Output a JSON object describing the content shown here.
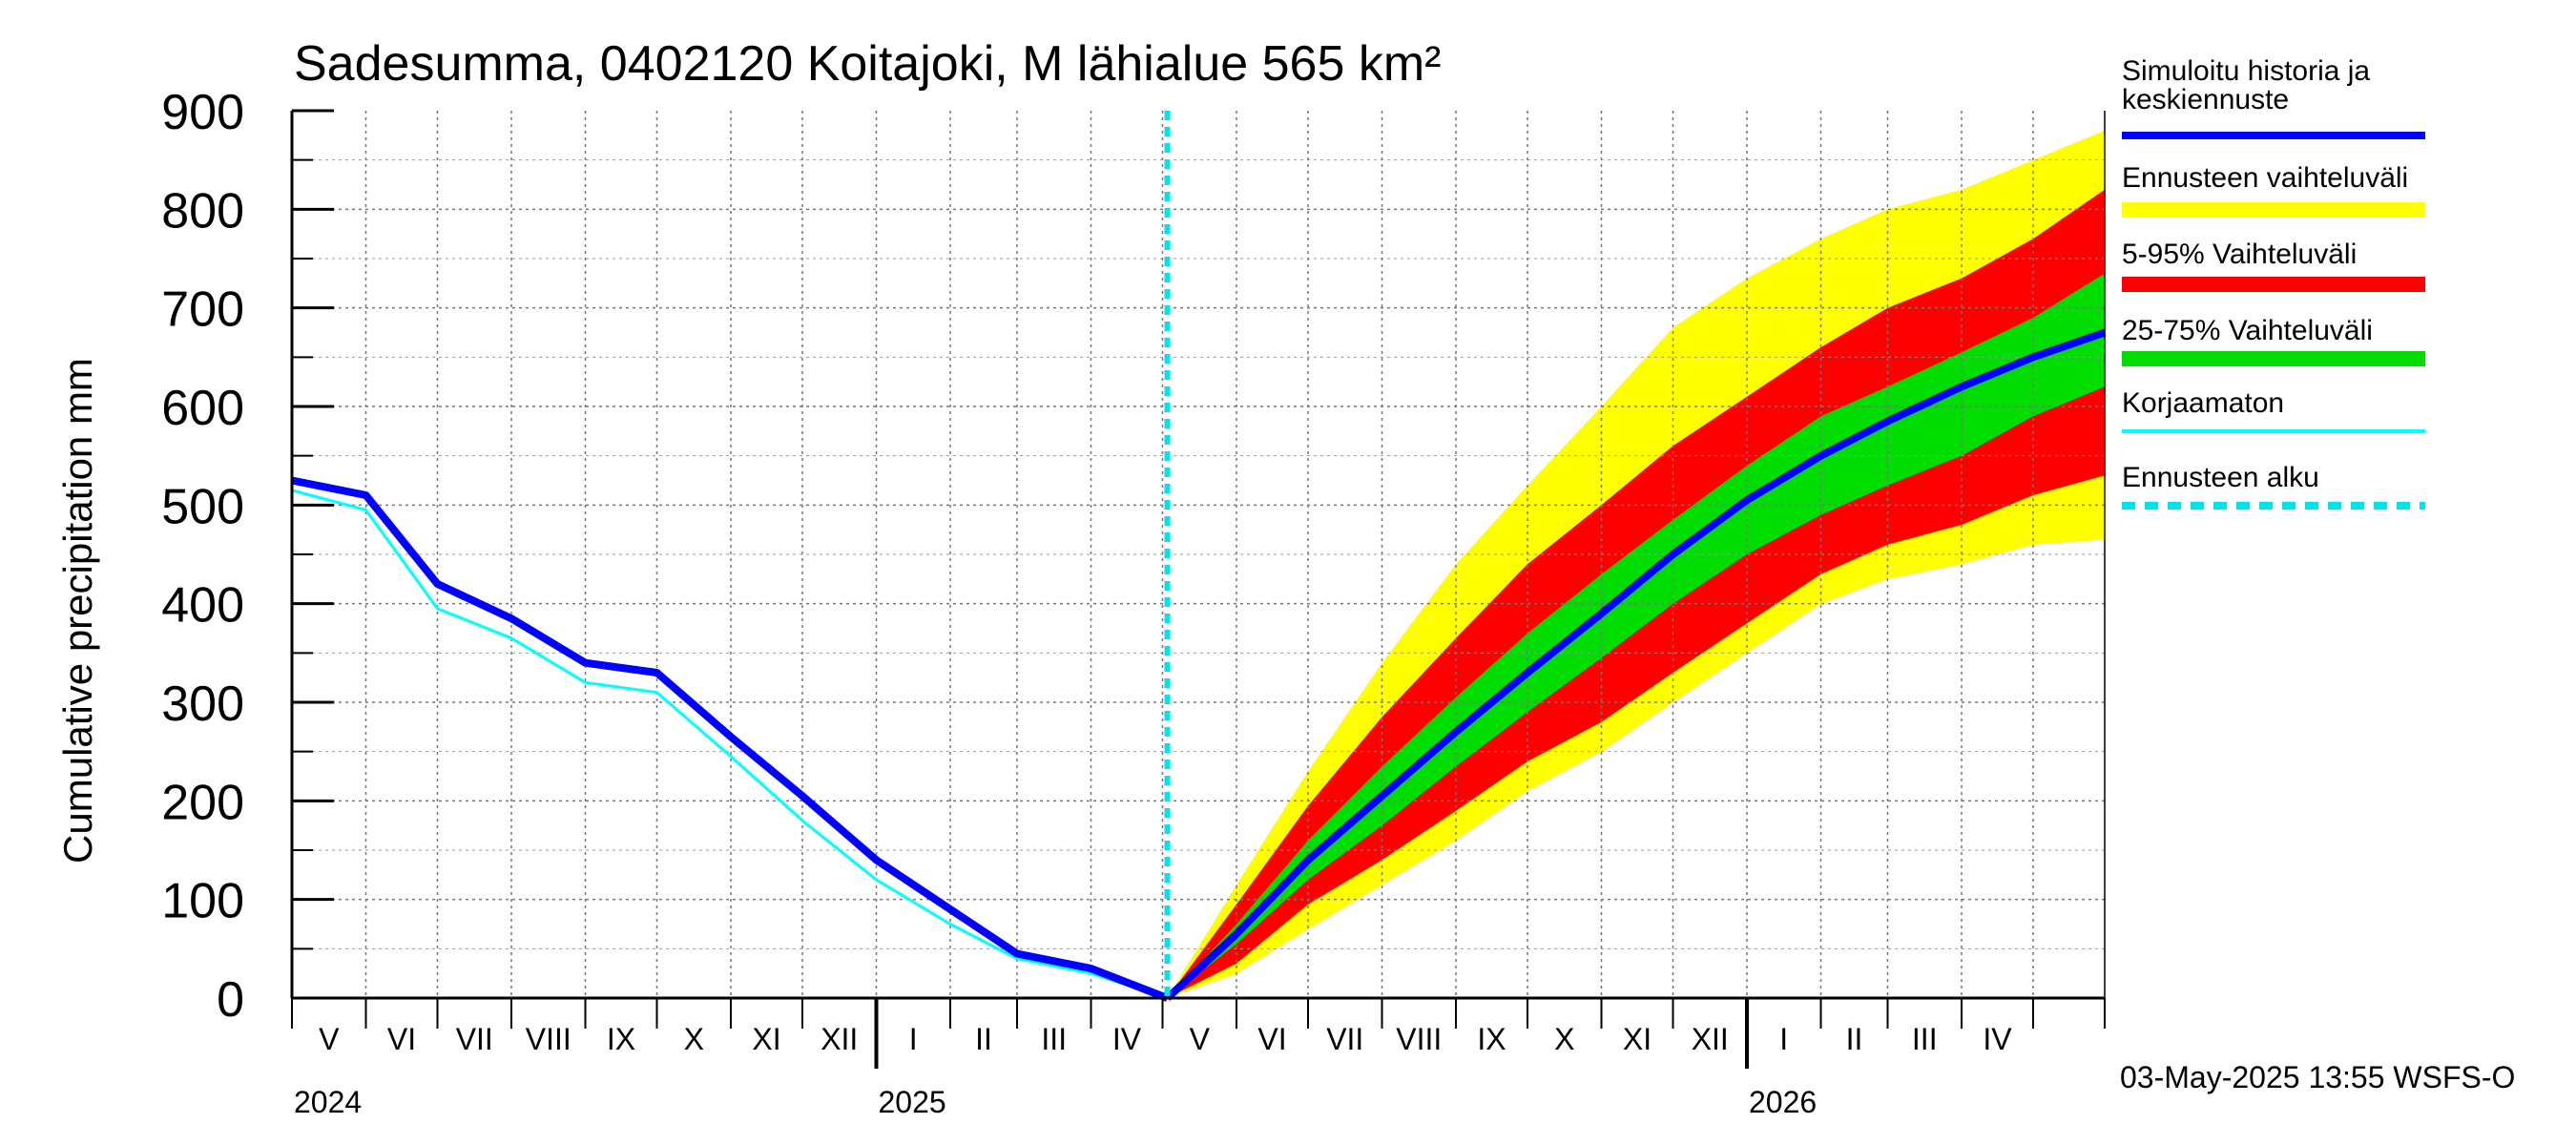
{
  "chart_data": {
    "type": "area",
    "title": "Sadesumma, 0402120 Koitajoki, M lähialue 565 km²",
    "ylabel": "Cumulative precipitation   mm",
    "ylim": [
      0,
      900
    ],
    "yticks": [
      0,
      100,
      200,
      300,
      400,
      500,
      600,
      700,
      800,
      900
    ],
    "x_start": "2024-05-01",
    "x_end": "2026-05-31",
    "forecast_start": "2025-05-03",
    "months": [
      "V",
      "VI",
      "VII",
      "VIII",
      "IX",
      "X",
      "XI",
      "XII",
      "I",
      "II",
      "III",
      "IV",
      "V",
      "VI",
      "VII",
      "VIII",
      "IX",
      "X",
      "XI",
      "XII",
      "I",
      "II",
      "III",
      "IV"
    ],
    "years": [
      {
        "label": "2024",
        "date": "2024-05-01"
      },
      {
        "label": "2025",
        "date": "2025-01-01"
      },
      {
        "label": "2026",
        "date": "2026-01-01"
      }
    ],
    "history": {
      "dates": [
        "2024-05-01",
        "2024-06-01",
        "2024-07-01",
        "2024-08-01",
        "2024-09-01",
        "2024-10-01",
        "2024-11-01",
        "2024-12-01",
        "2025-01-01",
        "2025-02-01",
        "2025-03-01",
        "2025-04-01",
        "2025-05-03"
      ],
      "simulated": [
        525,
        510,
        420,
        385,
        340,
        330,
        265,
        205,
        140,
        90,
        45,
        30,
        0
      ],
      "uncorrected": [
        515,
        495,
        395,
        365,
        320,
        310,
        245,
        180,
        120,
        75,
        40,
        25,
        0
      ]
    },
    "forecast": {
      "dates": [
        "2025-05-03",
        "2025-06-01",
        "2025-07-01",
        "2025-08-01",
        "2025-09-01",
        "2025-10-01",
        "2025-11-01",
        "2025-12-01",
        "2026-01-01",
        "2026-02-01",
        "2026-03-01",
        "2026-04-01",
        "2026-05-01",
        "2026-05-31"
      ],
      "min": [
        0,
        25,
        70,
        115,
        160,
        210,
        250,
        300,
        350,
        400,
        425,
        440,
        460,
        465
      ],
      "p5": [
        0,
        35,
        95,
        140,
        190,
        240,
        280,
        330,
        380,
        430,
        460,
        480,
        510,
        530
      ],
      "p25": [
        0,
        55,
        120,
        175,
        235,
        290,
        345,
        400,
        450,
        490,
        520,
        550,
        590,
        620
      ],
      "median": [
        0,
        65,
        140,
        205,
        270,
        330,
        390,
        450,
        505,
        550,
        585,
        620,
        650,
        675
      ],
      "p75": [
        0,
        75,
        160,
        235,
        305,
        370,
        430,
        485,
        540,
        590,
        620,
        655,
        690,
        735
      ],
      "p95": [
        0,
        95,
        195,
        285,
        365,
        440,
        500,
        560,
        610,
        660,
        700,
        730,
        770,
        820
      ],
      "max": [
        0,
        115,
        230,
        340,
        440,
        520,
        600,
        680,
        730,
        770,
        800,
        820,
        850,
        880
      ]
    },
    "legend": [
      {
        "label": "Simuloitu historia ja keskiennuste",
        "color": "#0000ff",
        "style": "thick"
      },
      {
        "label": "Ennusteen vaihteluväli",
        "color": "#ffff00",
        "style": "band"
      },
      {
        "label": "5-95% Vaihteluväli",
        "color": "#ff0000",
        "style": "band"
      },
      {
        "label": "25-75% Vaihteluväli",
        "color": "#00dd00",
        "style": "band"
      },
      {
        "label": "Korjaamaton",
        "color": "#00ffff",
        "style": "thin"
      },
      {
        "label": "Ennusteen alku",
        "color": "#00e5e5",
        "style": "dashed"
      }
    ],
    "timestamp": "03-May-2025 13:55 WSFS-O",
    "colors": {
      "simulated": "#0000ff",
      "uncorrected": "#00ffff",
      "band_outer": "#ffff00",
      "band_mid": "#ff0000",
      "band_inner": "#00dd00",
      "forecast_start": "#00e5e5"
    }
  }
}
